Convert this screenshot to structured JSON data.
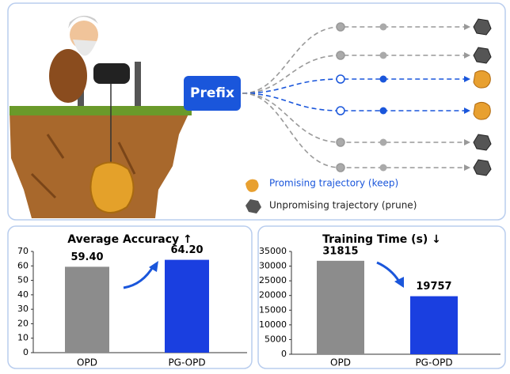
{
  "diagram": {
    "prefix": "Prefix",
    "legend": [
      "Promising trajectory (keep)",
      "Unpromising trajectory (prune)"
    ]
  },
  "chart_data": [
    {
      "type": "bar",
      "title": "Average Accuracy ↑",
      "categories": [
        "OPD",
        "PG-OPD"
      ],
      "values": [
        59.4,
        64.2
      ],
      "value_labels": [
        "59.40",
        "64.20"
      ],
      "colors": [
        "#8c8c8c",
        "#1a3fe0"
      ],
      "ylim": [
        0,
        70
      ],
      "yticks": [
        0,
        10,
        20,
        30,
        40,
        50,
        60,
        70
      ]
    },
    {
      "type": "bar",
      "title": "Training Time (s) ↓",
      "categories": [
        "OPD",
        "PG-OPD"
      ],
      "values": [
        31815,
        19757
      ],
      "colors": [
        "#8c8c8c",
        "#1a3fe0"
      ],
      "ylim": [
        0,
        35000
      ],
      "yticks": [
        0,
        5000,
        10000,
        15000,
        20000,
        25000,
        30000,
        35000
      ]
    }
  ]
}
